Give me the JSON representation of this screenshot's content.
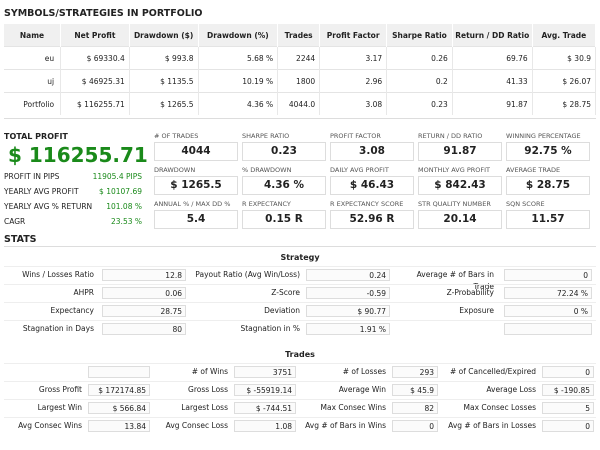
{
  "portfolio": {
    "title": "SYMBOLS/STRATEGIES IN PORTFOLIO",
    "headers": [
      "Name",
      "Net Profit",
      "Drawdown ($)",
      "Drawdown (%)",
      "Trades",
      "Profit Factor",
      "Sharpe Ratio",
      "Return / DD Ratio",
      "Avg. Trade"
    ],
    "rows": [
      [
        "eu",
        "$ 69330.4",
        "$ 993.8",
        "5.68 %",
        "2244",
        "3.17",
        "0.26",
        "69.76",
        "$ 30.9"
      ],
      [
        "uj",
        "$ 46925.31",
        "$ 1135.5",
        "10.19 %",
        "1800",
        "2.96",
        "0.2",
        "41.33",
        "$ 26.07"
      ],
      [
        "Portfolio",
        "$ 116255.71",
        "$ 1265.5",
        "4.36 %",
        "4044.0",
        "3.08",
        "0.23",
        "91.87",
        "$ 28.75"
      ]
    ]
  },
  "summary": {
    "total_profit_label": "TOTAL PROFIT",
    "total_profit_value": "$ 116255.71",
    "items": [
      {
        "label": "PROFIT IN PIPS",
        "value": "11905.4 PIPS"
      },
      {
        "label": "YEARLY AVG PROFIT",
        "value": "$ 10107.69"
      },
      {
        "label": "YEARLY AVG % RETURN",
        "value": "101.08 %"
      },
      {
        "label": "CAGR",
        "value": "23.53 %"
      }
    ],
    "cards": [
      {
        "label": "# OF TRADES",
        "value": "4044"
      },
      {
        "label": "SHARPE RATIO",
        "value": "0.23"
      },
      {
        "label": "PROFIT FACTOR",
        "value": "3.08"
      },
      {
        "label": "RETURN / DD RATIO",
        "value": "91.87"
      },
      {
        "label": "WINNING PERCENTAGE",
        "value": "92.75 %"
      },
      {
        "label": "DRAWDOWN",
        "value": "$ 1265.5"
      },
      {
        "label": "% DRAWDOWN",
        "value": "4.36 %"
      },
      {
        "label": "DAILY AVG PROFIT",
        "value": "$ 46.43"
      },
      {
        "label": "MONTHLY AVG PROFIT",
        "value": "$ 842.43"
      },
      {
        "label": "AVERAGE TRADE",
        "value": "$ 28.75"
      },
      {
        "label": "ANNUAL % / MAX DD %",
        "value": "5.4"
      },
      {
        "label": "R EXPECTANCY",
        "value": "0.15 R"
      },
      {
        "label": "R EXPECTANCY SCORE",
        "value": "52.96 R"
      },
      {
        "label": "STR QUALITY NUMBER",
        "value": "20.14"
      },
      {
        "label": "SQN SCORE",
        "value": "11.57"
      }
    ]
  },
  "stats": {
    "title": "STATS",
    "strategy_title": "Strategy",
    "strategy_rows": [
      [
        [
          "Wins / Losses Ratio",
          "12.8"
        ],
        [
          "Payout Ratio (Avg Win/Loss)",
          "0.24"
        ],
        [
          "Average # of Bars in Trade",
          "0"
        ]
      ],
      [
        [
          "AHPR",
          "0.06"
        ],
        [
          "Z-Score",
          "-0.59"
        ],
        [
          "Z-Probability",
          "72.24 %"
        ]
      ],
      [
        [
          "Expectancy",
          "28.75"
        ],
        [
          "Deviation",
          "$ 90.77"
        ],
        [
          "Exposure",
          "0 %"
        ]
      ],
      [
        [
          "Stagnation in Days",
          "80"
        ],
        [
          "Stagnation in %",
          "1.91 %"
        ],
        [
          "",
          ""
        ]
      ]
    ],
    "trades_title": "Trades",
    "trades_rows": [
      [
        [
          "",
          ""
        ],
        [
          "# of Wins",
          "3751"
        ],
        [
          "# of Losses",
          "293"
        ],
        [
          "# of Cancelled/Expired",
          "0"
        ]
      ],
      [
        [
          "Gross Profit",
          "$ 172174.85"
        ],
        [
          "Gross Loss",
          "$ -55919.14"
        ],
        [
          "Average Win",
          "$ 45.9"
        ],
        [
          "Average Loss",
          "$ -190.85"
        ]
      ],
      [
        [
          "Largest Win",
          "$ 566.84"
        ],
        [
          "Largest Loss",
          "$ -744.51"
        ],
        [
          "Max Consec Wins",
          "82"
        ],
        [
          "Max Consec Losses",
          "5"
        ]
      ],
      [
        [
          "Avg Consec Wins",
          "13.84"
        ],
        [
          "Avg Consec Loss",
          "1.08"
        ],
        [
          "Avg # of Bars in Wins",
          "0"
        ],
        [
          "Avg # of Bars in Losses",
          "0"
        ]
      ]
    ]
  }
}
